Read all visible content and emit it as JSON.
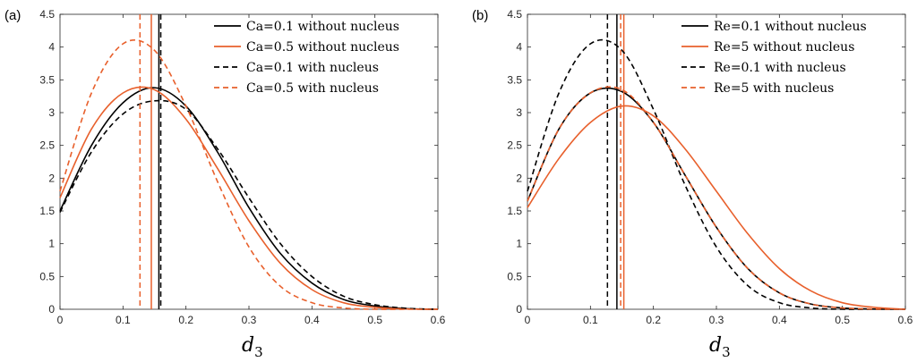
{
  "colors": {
    "black": "#000000",
    "orange": "#E8602C"
  },
  "chart_data": [
    {
      "type": "line",
      "panel_label": "(a)",
      "xlabel": "d",
      "xlabel_sub": "3",
      "xlim": [
        0,
        0.6
      ],
      "ylim": [
        0,
        4.5
      ],
      "xticks": [
        0,
        0.1,
        0.2,
        0.3,
        0.4,
        0.5,
        0.6
      ],
      "xtick_labels": [
        "0",
        "0.1",
        "0.2",
        "0.3",
        "0.4",
        "0.5",
        "0.6"
      ],
      "yticks": [
        0,
        0.5,
        1,
        1.5,
        2,
        2.5,
        3,
        3.5,
        4,
        4.5
      ],
      "ytick_labels": [
        "0",
        "0.5",
        "1",
        "1.5",
        "2",
        "2.5",
        "3",
        "3.5",
        "4",
        "4.5"
      ],
      "legend_position": "top-right",
      "series": [
        {
          "name": "Ca=0.1 without nucleus",
          "color": "black",
          "style": "solid",
          "mean": 0.157,
          "x": [
            0,
            0.05,
            0.1,
            0.15,
            0.2,
            0.25,
            0.3,
            0.35,
            0.4,
            0.45,
            0.5,
            0.55,
            0.6
          ],
          "y": [
            1.5,
            2.5,
            3.15,
            3.38,
            3.1,
            2.4,
            1.55,
            0.85,
            0.4,
            0.15,
            0.05,
            0.01,
            0
          ]
        },
        {
          "name": "Ca=0.5 without nucleus",
          "color": "orange",
          "style": "solid",
          "mean": 0.145,
          "x": [
            0,
            0.05,
            0.1,
            0.15,
            0.2,
            0.25,
            0.3,
            0.35,
            0.4,
            0.45,
            0.5,
            0.55,
            0.6
          ],
          "y": [
            1.7,
            2.75,
            3.3,
            3.35,
            2.9,
            2.15,
            1.35,
            0.7,
            0.3,
            0.1,
            0.03,
            0.005,
            0
          ]
        },
        {
          "name": "Ca=0.1 with nucleus",
          "color": "black",
          "style": "dashed",
          "mean": 0.16,
          "x": [
            0,
            0.05,
            0.1,
            0.15,
            0.2,
            0.25,
            0.3,
            0.35,
            0.4,
            0.45,
            0.5,
            0.55,
            0.6
          ],
          "y": [
            1.48,
            2.4,
            2.98,
            3.18,
            3.05,
            2.45,
            1.7,
            1.0,
            0.5,
            0.2,
            0.07,
            0.015,
            0
          ]
        },
        {
          "name": "Ca=0.5 with nucleus",
          "color": "orange",
          "style": "dashed",
          "mean": 0.127,
          "x": [
            0,
            0.05,
            0.1,
            0.15,
            0.2,
            0.25,
            0.3,
            0.35,
            0.4,
            0.45,
            0.5,
            0.55,
            0.6
          ],
          "y": [
            1.8,
            3.3,
            4.05,
            3.95,
            3.1,
            1.95,
            0.95,
            0.35,
            0.1,
            0.02,
            0,
            0,
            0
          ]
        }
      ]
    },
    {
      "type": "line",
      "panel_label": "(b)",
      "xlabel": "d",
      "xlabel_sub": "3",
      "xlim": [
        0,
        0.6
      ],
      "ylim": [
        0,
        4.5
      ],
      "xticks": [
        0,
        0.1,
        0.2,
        0.3,
        0.4,
        0.5,
        0.6
      ],
      "xtick_labels": [
        "0",
        "0.1",
        "0.2",
        "0.3",
        "0.4",
        "0.5",
        "0.6"
      ],
      "yticks": [
        0,
        0.5,
        1,
        1.5,
        2,
        2.5,
        3,
        3.5,
        4,
        4.5
      ],
      "ytick_labels": [
        "0",
        "0.5",
        "1",
        "1.5",
        "2",
        "2.5",
        "3",
        "3.5",
        "4",
        "4.5"
      ],
      "legend_position": "top-right",
      "series": [
        {
          "name": "Re=0.1 without nucleus",
          "color": "black",
          "style": "solid",
          "mean": 0.142,
          "x": [
            0,
            0.05,
            0.1,
            0.15,
            0.2,
            0.25,
            0.3,
            0.35,
            0.4,
            0.45,
            0.5,
            0.55,
            0.6
          ],
          "y": [
            1.65,
            2.75,
            3.3,
            3.32,
            2.85,
            2.05,
            1.25,
            0.62,
            0.25,
            0.08,
            0.02,
            0.003,
            0
          ]
        },
        {
          "name": "Re=5 without nucleus",
          "color": "orange",
          "style": "solid",
          "mean": 0.153,
          "x": [
            0,
            0.05,
            0.1,
            0.15,
            0.2,
            0.25,
            0.3,
            0.35,
            0.4,
            0.45,
            0.5,
            0.55,
            0.6
          ],
          "y": [
            1.55,
            2.3,
            2.85,
            3.1,
            2.95,
            2.45,
            1.8,
            1.15,
            0.62,
            0.28,
            0.1,
            0.03,
            0
          ]
        },
        {
          "name": "Re=0.1 with nucleus",
          "color": "black",
          "style": "dashed",
          "mean": 0.127,
          "x": [
            0,
            0.05,
            0.1,
            0.15,
            0.2,
            0.25,
            0.3,
            0.35,
            0.4,
            0.45,
            0.5,
            0.55,
            0.6
          ],
          "y": [
            1.8,
            3.3,
            4.05,
            3.95,
            3.05,
            1.9,
            0.95,
            0.36,
            0.1,
            0.02,
            0,
            0,
            0
          ]
        },
        {
          "name": "Re=5 with nucleus",
          "color": "orange",
          "style": "dashed",
          "mean": 0.148,
          "x": [
            0,
            0.05,
            0.1,
            0.15,
            0.2,
            0.25,
            0.3,
            0.35,
            0.4,
            0.45,
            0.5,
            0.55,
            0.6
          ],
          "y": [
            1.65,
            2.75,
            3.3,
            3.35,
            2.85,
            2.05,
            1.25,
            0.62,
            0.25,
            0.08,
            0.02,
            0.003,
            0
          ]
        }
      ]
    }
  ]
}
